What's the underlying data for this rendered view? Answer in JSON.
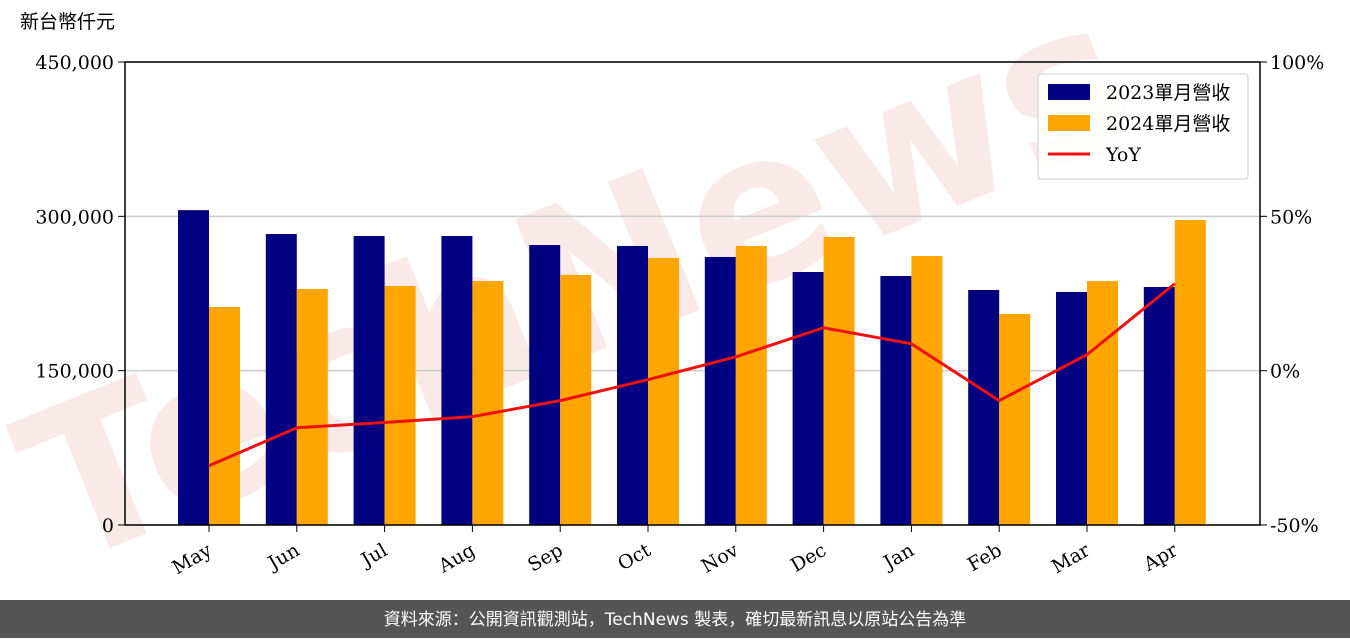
{
  "chart_data": {
    "type": "bar-line",
    "y_label": "新台幣仟元",
    "categories": [
      "May",
      "Jun",
      "Jul",
      "Aug",
      "Sep",
      "Oct",
      "Nov",
      "Dec",
      "Jan",
      "Feb",
      "Mar",
      "Apr"
    ],
    "series": [
      {
        "name": "2023單月營收",
        "color": "#000080",
        "type": "bar",
        "values": [
          306000,
          282800,
          280900,
          280900,
          272100,
          271200,
          260500,
          245900,
          242000,
          228400,
          226500,
          231300
        ]
      },
      {
        "name": "2024單月營收",
        "color": "#ffa500",
        "type": "bar",
        "values": [
          211900,
          229400,
          232300,
          237100,
          243000,
          259500,
          271200,
          279900,
          261400,
          205100,
          237100,
          296400
        ]
      },
      {
        "name": "YoY",
        "color": "#ee1111",
        "type": "line",
        "axis": "y2",
        "values": [
          -30.8,
          -18.5,
          -16.8,
          -14.9,
          -9.7,
          -2.9,
          4.5,
          13.9,
          8.7,
          -9.7,
          5.2,
          28.2
        ]
      }
    ],
    "ylim": [
      0,
      450000
    ],
    "yticks": [
      0,
      {
        "value": 150000,
        "label": "150,000"
      },
      {
        "value": 300000,
        "label": "300,000"
      },
      {
        "value": 450000,
        "label": "450,000"
      }
    ],
    "y2lim": [
      -50,
      100
    ],
    "y2ticks": [
      {
        "value": -50,
        "label": "-50%"
      },
      {
        "value": 0,
        "label": "0%"
      },
      {
        "value": 50,
        "label": "50%"
      },
      {
        "value": 100,
        "label": "100%"
      }
    ],
    "grid": true,
    "legend": "upper right",
    "watermark": "TechNews",
    "source": "資料來源：公開資訊觀測站，TechNews 製表，確切最新訊息以原站公告為準"
  }
}
